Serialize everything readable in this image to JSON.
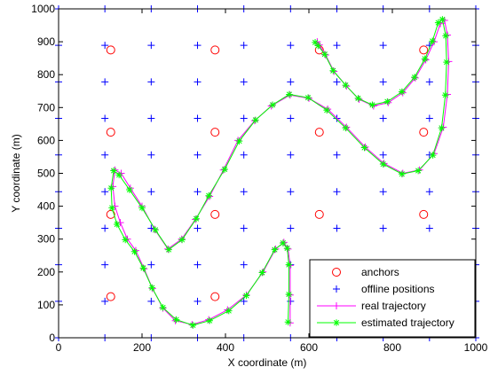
{
  "chart_data": {
    "type": "scatter",
    "title": "",
    "xlabel": "X coordinate (m)",
    "ylabel": "Y coordinate (m)",
    "xlim": [
      0,
      1000
    ],
    "ylim": [
      0,
      1000
    ],
    "xticks": [
      "0",
      "200",
      "400",
      "600",
      "800",
      "1000"
    ],
    "yticks": [
      "0",
      "100",
      "200",
      "300",
      "400",
      "500",
      "600",
      "700",
      "800",
      "900",
      "1000"
    ],
    "grid": false,
    "legend_position": "bottom-right",
    "series": [
      {
        "name": "anchors",
        "marker": "circle",
        "color": "#ff0000",
        "x": [
          125,
          375,
          625,
          875,
          125,
          375,
          625,
          875,
          125,
          375,
          625,
          875,
          125,
          375,
          625,
          875
        ],
        "y": [
          125,
          125,
          125,
          125,
          375,
          375,
          375,
          375,
          625,
          625,
          625,
          625,
          875,
          875,
          875,
          875
        ]
      },
      {
        "name": "offline positions",
        "marker": "plus",
        "color": "#0000ff",
        "x_grid": [
          0,
          111,
          222,
          333,
          444,
          556,
          667,
          778,
          889,
          1000
        ],
        "y_grid": [
          0,
          111,
          222,
          333,
          444,
          556,
          667,
          778,
          889,
          1000
        ]
      },
      {
        "name": "real trajectory",
        "marker": "plus-line",
        "color": "#ff00ff",
        "x": [
          555,
          555,
          555,
          550,
          540,
          520,
          490,
          450,
          405,
          360,
          320,
          280,
          250,
          225,
          205,
          185,
          165,
          148,
          135,
          130,
          135,
          150,
          172,
          200,
          230,
          262,
          295,
          328,
          362,
          395,
          430,
          470,
          510,
          555,
          600,
          645,
          690,
          735,
          780,
          825,
          865,
          900,
          922,
          932,
          935,
          932,
          925,
          915,
          900,
          880,
          855,
          825,
          790,
          755,
          720,
          690,
          660,
          640,
          625,
          620
        ],
        "y": [
          45,
          130,
          220,
          270,
          290,
          270,
          200,
          130,
          85,
          55,
          40,
          52,
          90,
          150,
          210,
          265,
          300,
          350,
          400,
          460,
          510,
          500,
          455,
          400,
          330,
          270,
          300,
          360,
          430,
          510,
          600,
          660,
          705,
          738,
          728,
          695,
          640,
          580,
          530,
          500,
          510,
          560,
          640,
          740,
          840,
          920,
          965,
          955,
          900,
          845,
          790,
          745,
          715,
          705,
          725,
          765,
          810,
          860,
          890,
          900
        ]
      },
      {
        "name": "estimated trajectory",
        "marker": "star-line",
        "color": "#00ff00",
        "x": [
          550,
          552,
          552,
          548,
          538,
          518,
          488,
          450,
          408,
          362,
          322,
          282,
          250,
          224,
          203,
          182,
          160,
          140,
          128,
          126,
          132,
          145,
          170,
          200,
          232,
          264,
          296,
          330,
          360,
          398,
          433,
          472,
          513,
          553,
          598,
          643,
          688,
          733,
          778,
          823,
          862,
          897,
          918,
          927,
          930,
          928,
          920,
          910,
          896,
          878,
          853,
          823,
          788,
          752,
          718,
          688,
          658,
          638,
          622,
          615
        ],
        "y": [
          48,
          132,
          222,
          272,
          288,
          268,
          198,
          128,
          82,
          52,
          38,
          55,
          92,
          152,
          212,
          262,
          298,
          345,
          395,
          455,
          508,
          495,
          450,
          395,
          328,
          268,
          298,
          362,
          432,
          512,
          598,
          662,
          708,
          740,
          730,
          692,
          638,
          578,
          528,
          498,
          508,
          555,
          638,
          738,
          838,
          918,
          968,
          958,
          902,
          848,
          792,
          748,
          718,
          708,
          728,
          768,
          812,
          862,
          888,
          898
        ]
      }
    ]
  }
}
